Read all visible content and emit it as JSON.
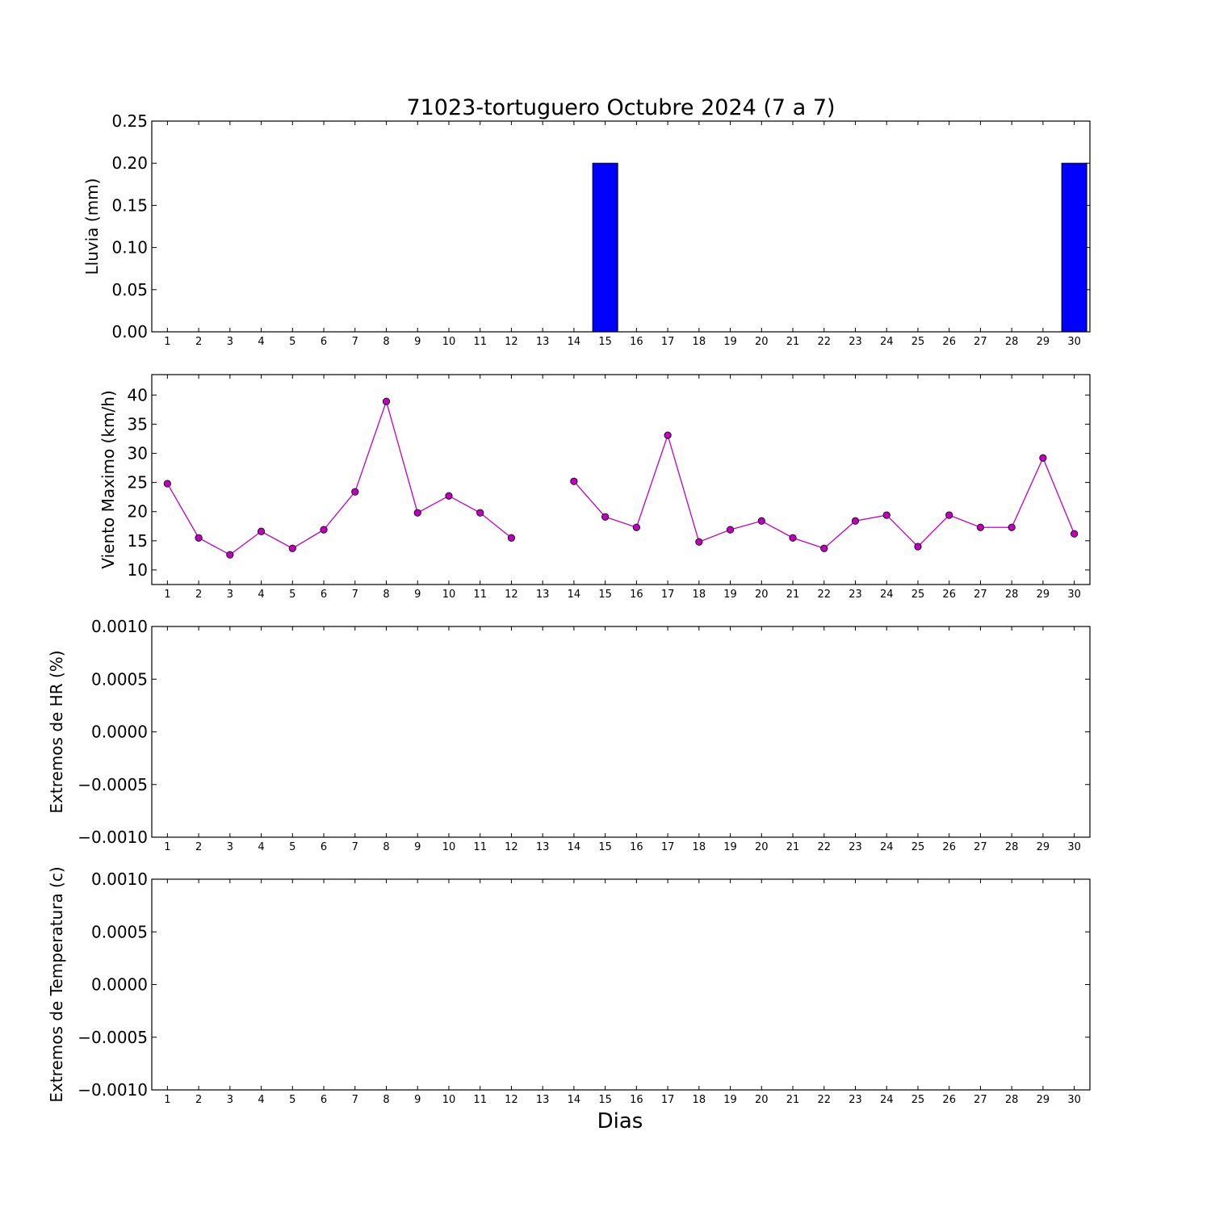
{
  "figure": {
    "title": "71023-tortuguero Octubre 2024  (7 a 7)",
    "xlabel": "Dias"
  },
  "chart_data": [
    {
      "id": "lluvia",
      "type": "bar",
      "ylabel": "Lluvia (mm)",
      "x": [
        1,
        2,
        3,
        4,
        5,
        6,
        7,
        8,
        9,
        10,
        11,
        12,
        13,
        14,
        15,
        16,
        17,
        18,
        19,
        20,
        21,
        22,
        23,
        24,
        25,
        26,
        27,
        28,
        29,
        30
      ],
      "values": [
        0,
        0,
        0,
        0,
        0,
        0,
        0,
        0,
        0,
        0,
        0,
        0,
        0,
        0,
        0.2,
        0,
        0,
        0,
        0,
        0,
        0,
        0,
        0,
        0,
        0,
        0,
        0,
        0,
        0,
        0.2
      ],
      "ylim": [
        0,
        0.25
      ],
      "yticks": [
        "0.00",
        "0.05",
        "0.10",
        "0.15",
        "0.20",
        "0.25"
      ],
      "xlim": [
        0.5,
        30.5
      ],
      "color": "#0000ff"
    },
    {
      "id": "viento",
      "type": "line",
      "ylabel": "Viento Maximo (km/h)",
      "x": [
        1,
        2,
        3,
        4,
        5,
        6,
        7,
        8,
        9,
        10,
        11,
        12,
        13,
        14,
        15,
        16,
        17,
        18,
        19,
        20,
        21,
        22,
        23,
        24,
        25,
        26,
        27,
        28,
        29,
        30
      ],
      "values": [
        24.8,
        15.5,
        12.6,
        16.6,
        13.7,
        16.9,
        23.4,
        38.9,
        19.8,
        22.7,
        19.8,
        15.5,
        null,
        25.2,
        19.1,
        17.3,
        33.1,
        14.8,
        16.9,
        18.4,
        15.5,
        13.7,
        18.4,
        19.4,
        14.0,
        19.4,
        17.3,
        17.3,
        29.2,
        16.2
      ],
      "ylim": [
        7.5,
        43.5
      ],
      "yticks": [
        "10",
        "15",
        "20",
        "25",
        "30",
        "35",
        "40"
      ],
      "xlim": [
        0.5,
        30.5
      ],
      "color": "#bf00bf"
    },
    {
      "id": "hr",
      "type": "line",
      "ylabel": "Extremos de HR (%)",
      "x": [],
      "values": [],
      "ylim": [
        -0.001,
        0.001
      ],
      "yticks": [
        "−0.0010",
        "−0.0005",
        "0.0000",
        "0.0005",
        "0.0010"
      ],
      "xlim": [
        0.5,
        30.5
      ]
    },
    {
      "id": "temp",
      "type": "line",
      "ylabel": "Extremos de Temperatura (c)",
      "x": [],
      "values": [],
      "ylim": [
        -0.001,
        0.001
      ],
      "yticks": [
        "−0.0010",
        "−0.0005",
        "0.0000",
        "0.0005",
        "0.0010"
      ],
      "xlim": [
        0.5,
        30.5
      ]
    }
  ],
  "xticks": [
    "1",
    "2",
    "3",
    "4",
    "5",
    "6",
    "7",
    "8",
    "9",
    "10",
    "11",
    "12",
    "13",
    "14",
    "15",
    "16",
    "17",
    "18",
    "19",
    "20",
    "21",
    "22",
    "23",
    "24",
    "25",
    "26",
    "27",
    "28",
    "29",
    "30"
  ]
}
